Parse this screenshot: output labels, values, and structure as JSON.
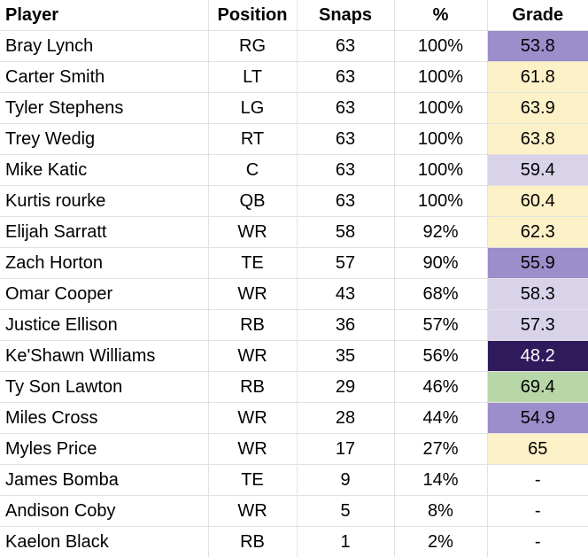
{
  "headers": {
    "player": "Player",
    "position": "Position",
    "snaps": "Snaps",
    "pct": "%",
    "grade": "Grade"
  },
  "colors": {
    "grade_cream": "#fdf1c8",
    "grade_light_lavender": "#d9d3ea",
    "grade_mid_purple": "#9c8dcb",
    "grade_dark_purple": "#2f1a5c",
    "grade_green": "#b7d7a8",
    "grade_none": "#ffffff"
  },
  "rows": [
    {
      "player": "Bray Lynch",
      "position": "RG",
      "snaps": "63",
      "pct": "100%",
      "grade": "53.8",
      "grade_color": "#9c8dcb",
      "grade_text_color": "#000000"
    },
    {
      "player": "Carter Smith",
      "position": "LT",
      "snaps": "63",
      "pct": "100%",
      "grade": "61.8",
      "grade_color": "#fdf1c8",
      "grade_text_color": "#000000"
    },
    {
      "player": "Tyler Stephens",
      "position": "LG",
      "snaps": "63",
      "pct": "100%",
      "grade": "63.9",
      "grade_color": "#fdf1c8",
      "grade_text_color": "#000000"
    },
    {
      "player": "Trey Wedig",
      "position": "RT",
      "snaps": "63",
      "pct": "100%",
      "grade": "63.8",
      "grade_color": "#fdf1c8",
      "grade_text_color": "#000000"
    },
    {
      "player": "Mike Katic",
      "position": "C",
      "snaps": "63",
      "pct": "100%",
      "grade": "59.4",
      "grade_color": "#d9d3ea",
      "grade_text_color": "#000000"
    },
    {
      "player": "Kurtis rourke",
      "position": "QB",
      "snaps": "63",
      "pct": "100%",
      "grade": "60.4",
      "grade_color": "#fdf1c8",
      "grade_text_color": "#000000"
    },
    {
      "player": "Elijah Sarratt",
      "position": "WR",
      "snaps": "58",
      "pct": "92%",
      "grade": "62.3",
      "grade_color": "#fdf1c8",
      "grade_text_color": "#000000"
    },
    {
      "player": "Zach Horton",
      "position": "TE",
      "snaps": "57",
      "pct": "90%",
      "grade": "55.9",
      "grade_color": "#9c8dcb",
      "grade_text_color": "#000000"
    },
    {
      "player": "Omar Cooper",
      "position": "WR",
      "snaps": "43",
      "pct": "68%",
      "grade": "58.3",
      "grade_color": "#d9d3ea",
      "grade_text_color": "#000000"
    },
    {
      "player": "Justice Ellison",
      "position": "RB",
      "snaps": "36",
      "pct": "57%",
      "grade": "57.3",
      "grade_color": "#d9d3ea",
      "grade_text_color": "#000000"
    },
    {
      "player": "Ke'Shawn Williams",
      "position": "WR",
      "snaps": "35",
      "pct": "56%",
      "grade": "48.2",
      "grade_color": "#2f1a5c",
      "grade_text_color": "#ffffff"
    },
    {
      "player": "Ty Son Lawton",
      "position": "RB",
      "snaps": "29",
      "pct": "46%",
      "grade": "69.4",
      "grade_color": "#b7d7a8",
      "grade_text_color": "#000000"
    },
    {
      "player": "Miles Cross",
      "position": "WR",
      "snaps": "28",
      "pct": "44%",
      "grade": "54.9",
      "grade_color": "#9c8dcb",
      "grade_text_color": "#000000"
    },
    {
      "player": "Myles Price",
      "position": "WR",
      "snaps": "17",
      "pct": "27%",
      "grade": "65",
      "grade_color": "#fdf1c8",
      "grade_text_color": "#000000"
    },
    {
      "player": "James Bomba",
      "position": "TE",
      "snaps": "9",
      "pct": "14%",
      "grade": "-",
      "grade_color": "#ffffff",
      "grade_text_color": "#000000"
    },
    {
      "player": "Andison Coby",
      "position": "WR",
      "snaps": "5",
      "pct": "8%",
      "grade": "-",
      "grade_color": "#ffffff",
      "grade_text_color": "#000000"
    },
    {
      "player": "Kaelon Black",
      "position": "RB",
      "snaps": "1",
      "pct": "2%",
      "grade": "-",
      "grade_color": "#ffffff",
      "grade_text_color": "#000000"
    }
  ]
}
